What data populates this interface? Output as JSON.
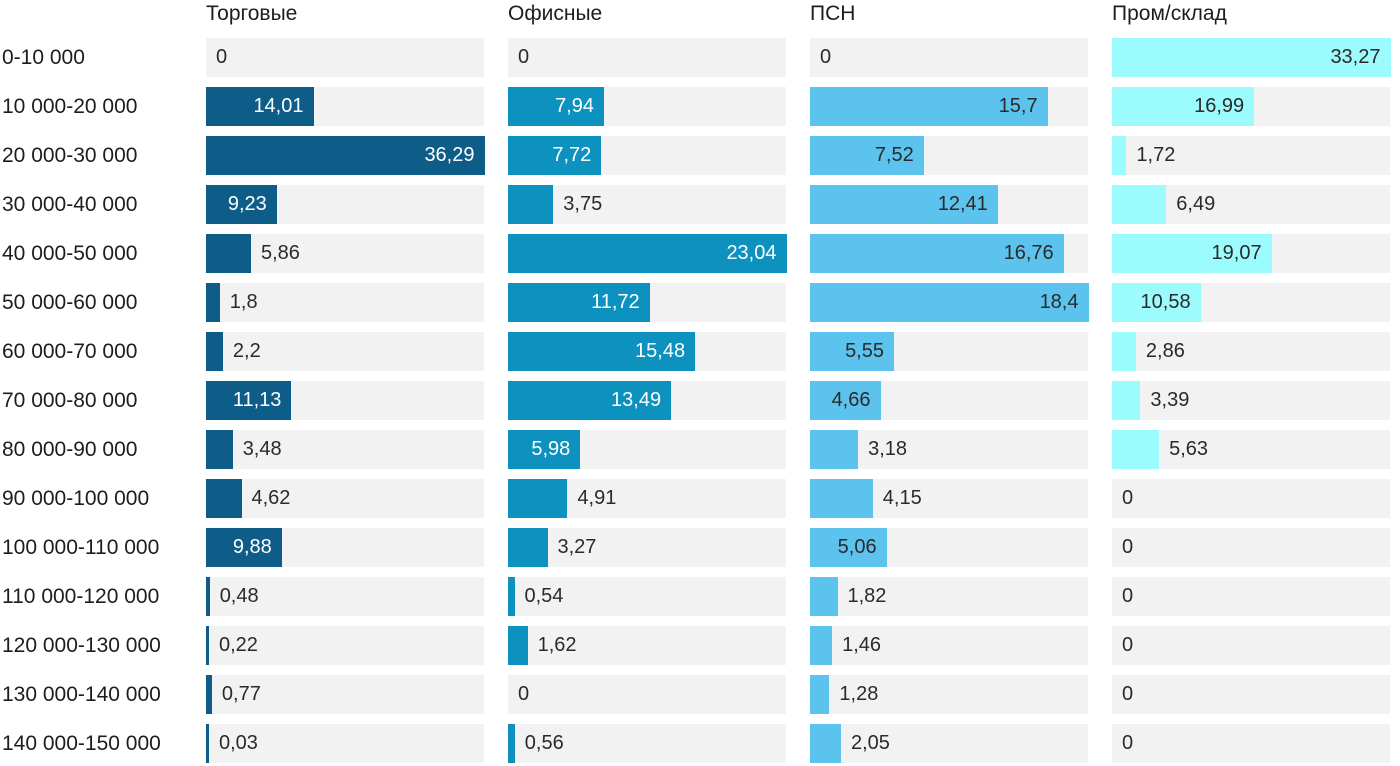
{
  "chart_data": {
    "type": "bar",
    "orientation": "horizontal",
    "title": "",
    "xlabel": "",
    "ylabel": "",
    "grid": false,
    "legend_position": "column-headers",
    "scale": "per-series-max",
    "value_format": "comma-decimal",
    "track_color": "#f2f2f2",
    "background_color": "#ffffff",
    "label_color": "#1d1d1d",
    "outside_value_color": "#2a2a2a",
    "categories": [
      "0-10 000",
      "10 000-20 000",
      "20 000-30 000",
      "30 000-40 000",
      "40 000-50 000",
      "50 000-60 000",
      "60 000-70 000",
      "70 000-80 000",
      "80 000-90 000",
      "90 000-100 000",
      "100 000-110 000",
      "110 000-120 000",
      "120 000-130 000",
      "130 000-140 000",
      "140 000-150 000"
    ],
    "series": [
      {
        "name": "Торговые",
        "color": "#0e5d89",
        "inside_value_color": "#ffffff",
        "max": 36.29,
        "values": [
          0,
          14.01,
          36.29,
          9.23,
          5.86,
          1.8,
          2.2,
          11.13,
          3.48,
          4.62,
          9.88,
          0.48,
          0.22,
          0.77,
          0.03
        ]
      },
      {
        "name": "Офисные",
        "color": "#0d92bf",
        "inside_value_color": "#ffffff",
        "max": 23.04,
        "values": [
          0,
          7.94,
          7.72,
          3.75,
          23.04,
          11.72,
          15.48,
          13.49,
          5.98,
          4.91,
          3.27,
          0.54,
          1.62,
          0,
          0.56
        ]
      },
      {
        "name": "ПСН",
        "color": "#5cc3ee",
        "inside_value_color": "#2a2a2a",
        "max": 18.4,
        "values": [
          0,
          15.7,
          7.52,
          12.41,
          16.76,
          18.4,
          5.55,
          4.66,
          3.18,
          4.15,
          5.06,
          1.82,
          1.46,
          1.28,
          2.05
        ]
      },
      {
        "name": "Пром/склад",
        "color": "#9bfbfd",
        "inside_value_color": "#2a2a2a",
        "max": 33.27,
        "values": [
          33.27,
          16.99,
          1.72,
          6.49,
          19.07,
          10.58,
          2.86,
          3.39,
          5.63,
          0,
          0,
          0,
          0,
          0,
          0
        ]
      }
    ]
  }
}
